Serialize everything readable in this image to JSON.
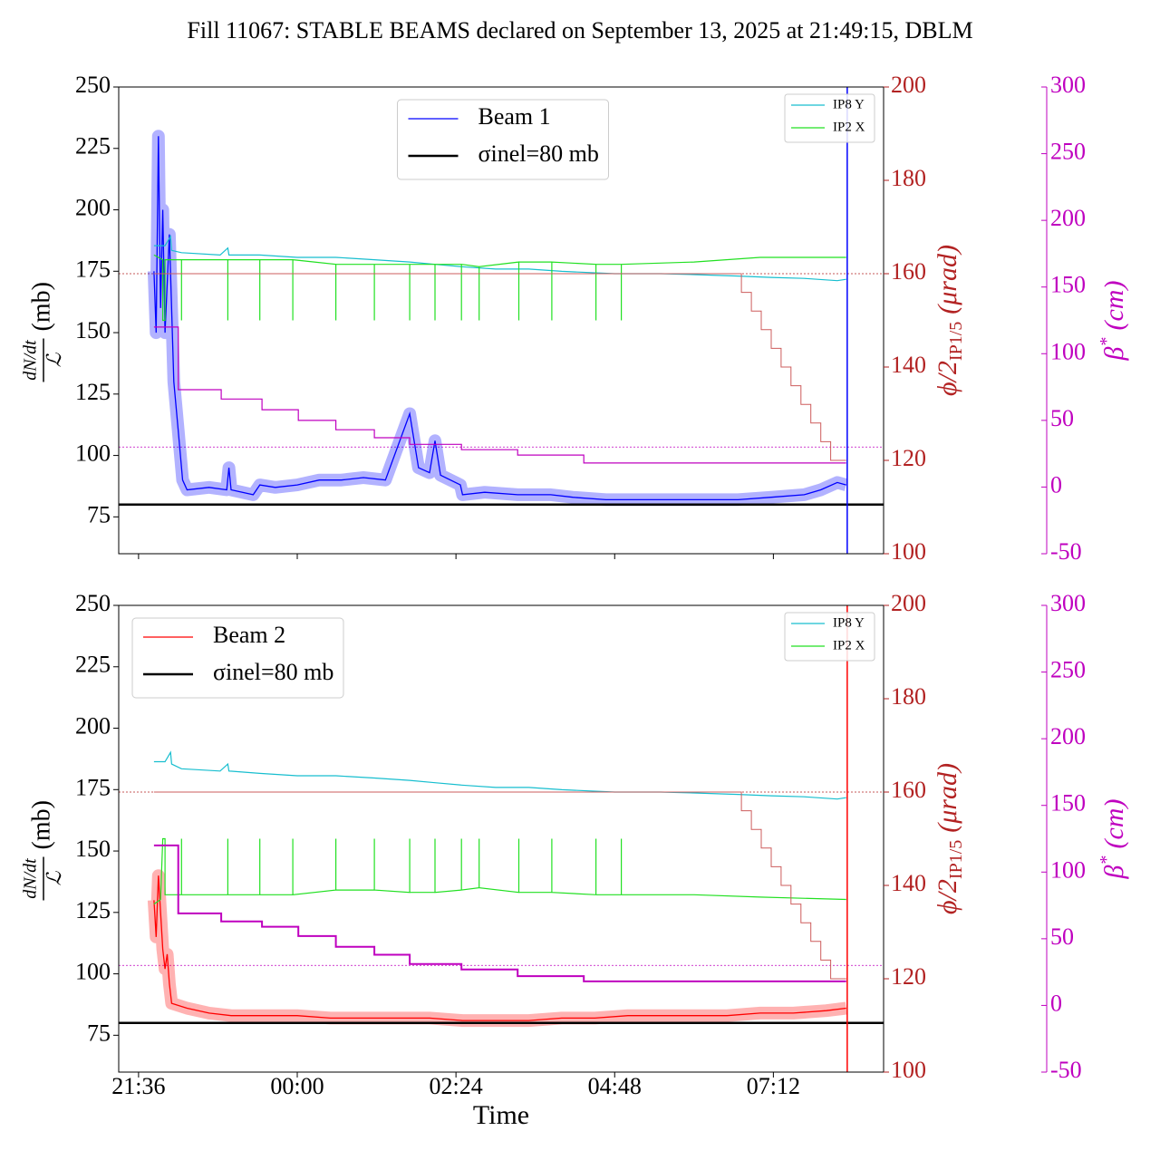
{
  "title": "Fill 11067: STABLE BEAMS declared on September 13, 2025 at 21:49:15, DBLM",
  "chart_data": [
    {
      "type": "line",
      "ylabel": {
        "numerator": "dN/dt",
        "denominator": "ℒ",
        "unit": "(mb)"
      },
      "y2label": {
        "text": "ϕ/2",
        "sub": "IP1/5",
        "unit": "(μrad)"
      },
      "y3label": {
        "text": "β",
        "sup": "*",
        "unit": "(cm)"
      },
      "xlim": [
        "21:18",
        "08:52"
      ],
      "ylim": [
        60,
        250
      ],
      "yticks": [
        75,
        100,
        125,
        150,
        175,
        200,
        225,
        250
      ],
      "y2lim": [
        100,
        200
      ],
      "y2ticks": [
        100,
        120,
        140,
        160,
        180,
        200
      ],
      "y3lim": [
        -50,
        300
      ],
      "y3ticks": [
        -50,
        0,
        50,
        100,
        150,
        200,
        250,
        300
      ],
      "legend": "upper center",
      "vline": {
        "x": "08:19",
        "color": "#0000ff"
      },
      "hlines": [
        {
          "axis": "y2",
          "value": 160,
          "color": "#b22222"
        },
        {
          "axis": "y3",
          "value": 30,
          "color": "#bf00bf"
        }
      ],
      "series": [
        {
          "name": "Beam 1",
          "color": "#0000ff",
          "axis": "y",
          "linewidth": 1.3,
          "spread": true,
          "x": [
            "21:50",
            "21:52",
            "21:54",
            "21:56",
            "21:58",
            "22:00",
            "22:04",
            "22:08",
            "22:12",
            "22:16",
            "22:20",
            "22:40",
            "22:56",
            "22:58",
            "23:00",
            "23:20",
            "23:26",
            "23:40",
            "00:00",
            "00:20",
            "00:40",
            "01:00",
            "01:20",
            "01:42",
            "01:50",
            "02:00",
            "02:05",
            "02:10",
            "02:28",
            "02:30",
            "02:50",
            "03:20",
            "03:50",
            "04:10",
            "04:40",
            "05:10",
            "05:40",
            "06:10",
            "06:40",
            "07:10",
            "07:40",
            "07:55",
            "08:10",
            "08:18"
          ],
          "values": [
            175,
            150,
            230,
            160,
            200,
            150,
            190,
            130,
            110,
            90,
            86,
            87,
            86,
            95,
            86,
            84,
            88,
            87,
            88,
            90,
            90,
            91,
            90,
            117,
            95,
            93,
            106,
            92,
            88,
            84,
            85,
            84,
            84,
            83,
            82,
            82,
            82,
            82,
            82,
            83,
            84,
            86,
            89,
            88
          ]
        },
        {
          "name": "σinel=80 mb",
          "color": "#000000",
          "axis": "y",
          "linewidth": 2.5,
          "x": [
            "21:18",
            "08:52"
          ],
          "values": [
            80,
            80
          ]
        },
        {
          "name": "IP8 Y",
          "color": "#17becf",
          "axis": "y2",
          "linewidth": 1.2,
          "x": [
            "21:50",
            "22:00",
            "22:05",
            "22:06",
            "22:15",
            "22:50",
            "22:57",
            "22:58",
            "23:26",
            "00:00",
            "00:35",
            "01:10",
            "01:42",
            "02:05",
            "02:29",
            "03:00",
            "03:30",
            "04:00",
            "04:48",
            "05:30",
            "06:00",
            "06:40",
            "07:10",
            "07:40",
            "08:10",
            "08:18"
          ],
          "values": [
            166,
            166,
            168,
            165,
            164.5,
            164,
            165.5,
            164,
            164,
            163.5,
            163.5,
            163,
            162.5,
            162,
            161.5,
            161,
            161,
            160.5,
            160,
            160,
            159.8,
            159.5,
            159.2,
            159,
            158.5,
            158.8
          ]
        },
        {
          "name": "IP2 X",
          "color": "#22e022",
          "axis": "y2",
          "linewidth": 1.2,
          "x": [
            "21:50",
            "21:58",
            "21:58",
            "22:00",
            "22:00",
            "22:15",
            "22:15",
            "22:15",
            "22:57",
            "22:57",
            "22:57",
            "23:26",
            "23:26",
            "23:26",
            "23:56",
            "23:56",
            "23:56",
            "00:35",
            "00:35",
            "00:35",
            "01:10",
            "01:10",
            "01:10",
            "01:42",
            "01:42",
            "01:42",
            "02:05",
            "02:05",
            "02:05",
            "02:29",
            "02:29",
            "02:29",
            "02:45",
            "02:45",
            "02:45",
            "03:21",
            "03:21",
            "03:21",
            "03:51",
            "03:51",
            "03:51",
            "04:31",
            "04:31",
            "04:31",
            "04:54",
            "04:54",
            "04:54",
            "06:00",
            "07:00",
            "08:18"
          ],
          "values": [
            164,
            163,
            150,
            150,
            163,
            163,
            150,
            163,
            163,
            150,
            163,
            163,
            150,
            163,
            163,
            150,
            163,
            162,
            150,
            162,
            162,
            150,
            162,
            162,
            150,
            162,
            162,
            150,
            162,
            162,
            150,
            162,
            161.5,
            150,
            161.5,
            162.5,
            150,
            162.5,
            162.5,
            150,
            162.5,
            162,
            150,
            162,
            162,
            150,
            162,
            162.5,
            163.5,
            163.5
          ]
        },
        {
          "color": "#cd5c5c",
          "axis": "y2",
          "linewidth": 1,
          "x": [
            "21:50",
            "06:43",
            "06:43",
            "06:52",
            "06:52",
            "07:01",
            "07:01",
            "07:10",
            "07:10",
            "07:19",
            "07:19",
            "07:28",
            "07:28",
            "07:37",
            "07:37",
            "07:46",
            "07:46",
            "07:55",
            "07:55",
            "08:04",
            "08:04",
            "08:18"
          ],
          "values": [
            160,
            160,
            156,
            156,
            152,
            152,
            148,
            148,
            144,
            144,
            140,
            140,
            136,
            136,
            132,
            132,
            128,
            128,
            124,
            124,
            120,
            120
          ]
        },
        {
          "color": "#bf00bf",
          "axis": "y3",
          "linewidth": 1.2,
          "x": [
            "21:50",
            "22:12",
            "22:12",
            "22:51",
            "22:51",
            "23:28",
            "23:28",
            "00:01",
            "00:01",
            "00:35",
            "00:35",
            "01:10",
            "01:10",
            "01:42",
            "01:42",
            "02:29",
            "02:29",
            "03:20",
            "03:20",
            "04:20",
            "04:20",
            "08:18"
          ],
          "values": [
            120,
            120,
            73,
            73,
            66,
            66,
            58,
            58,
            50,
            50,
            43,
            43,
            37,
            37,
            32,
            32,
            28,
            28,
            24,
            24,
            18,
            18
          ]
        }
      ]
    },
    {
      "type": "line",
      "ylabel": {
        "numerator": "dN/dt",
        "denominator": "ℒ",
        "unit": "(mb)"
      },
      "y2label": {
        "text": "ϕ/2",
        "sub": "IP1/5",
        "unit": "(μrad)"
      },
      "y3label": {
        "text": "β",
        "sup": "*",
        "unit": "(cm)"
      },
      "xlabel": "Time",
      "xlim": [
        "21:18",
        "08:52"
      ],
      "xticks": [
        "21:36",
        "00:00",
        "02:24",
        "04:48",
        "07:12"
      ],
      "ylim": [
        60,
        250
      ],
      "yticks": [
        75,
        100,
        125,
        150,
        175,
        200,
        225,
        250
      ],
      "y2lim": [
        100,
        200
      ],
      "y2ticks": [
        100,
        120,
        140,
        160,
        180,
        200
      ],
      "y3lim": [
        -50,
        300
      ],
      "y3ticks": [
        -50,
        0,
        50,
        100,
        150,
        200,
        250,
        300
      ],
      "legend": "upper left",
      "vline": {
        "x": "08:19",
        "color": "#ff0000"
      },
      "hlines": [
        {
          "axis": "y2",
          "value": 160,
          "color": "#b22222"
        },
        {
          "axis": "y3",
          "value": 30,
          "color": "#bf00bf"
        }
      ],
      "series": [
        {
          "name": "Beam 2",
          "color": "#ff0000",
          "axis": "y",
          "linewidth": 1.3,
          "spread": true,
          "x": [
            "21:50",
            "21:52",
            "21:54",
            "21:56",
            "21:58",
            "22:00",
            "22:02",
            "22:04",
            "22:06",
            "22:20",
            "22:40",
            "23:00",
            "23:30",
            "00:00",
            "00:30",
            "01:00",
            "01:30",
            "02:00",
            "02:30",
            "03:00",
            "03:30",
            "04:00",
            "04:30",
            "05:00",
            "05:30",
            "06:00",
            "06:30",
            "07:00",
            "07:30",
            "08:00",
            "08:18"
          ],
          "values": [
            130,
            115,
            140,
            125,
            110,
            102,
            108,
            96,
            88,
            86,
            84,
            83,
            83,
            83,
            82,
            82,
            82,
            82,
            81,
            81,
            81,
            82,
            82,
            83,
            83,
            83,
            83,
            84,
            84,
            85,
            86
          ]
        },
        {
          "name": "σinel=80 mb",
          "color": "#000000",
          "axis": "y",
          "linewidth": 2.5,
          "x": [
            "21:18",
            "08:52"
          ],
          "values": [
            80,
            80
          ]
        },
        {
          "name": "IP8 Y",
          "color": "#17becf",
          "axis": "y2",
          "linewidth": 1.2,
          "x": [
            "21:50",
            "22:00",
            "22:05",
            "22:06",
            "22:15",
            "22:50",
            "22:57",
            "22:58",
            "23:26",
            "00:00",
            "00:35",
            "01:10",
            "01:42",
            "02:05",
            "02:29",
            "03:00",
            "03:30",
            "04:00",
            "04:48",
            "05:30",
            "06:00",
            "06:40",
            "07:10",
            "07:40",
            "08:10",
            "08:18"
          ],
          "values": [
            166.5,
            166.5,
            168.5,
            166,
            165,
            164.5,
            166,
            164.5,
            164,
            163.5,
            163.5,
            163,
            162.5,
            162,
            161.5,
            161,
            161,
            160.5,
            160,
            160,
            159.8,
            159.5,
            159.2,
            159,
            158.5,
            158.8
          ]
        },
        {
          "name": "IP2 X",
          "color": "#22e022",
          "axis": "y2",
          "linewidth": 1.2,
          "x": [
            "21:50",
            "21:56",
            "21:58",
            "22:00",
            "22:00",
            "22:15",
            "22:15",
            "22:15",
            "22:57",
            "22:57",
            "22:57",
            "23:26",
            "23:26",
            "23:26",
            "23:56",
            "23:56",
            "23:56",
            "00:35",
            "00:35",
            "00:35",
            "01:10",
            "01:10",
            "01:10",
            "01:42",
            "01:42",
            "01:42",
            "02:05",
            "02:05",
            "02:05",
            "02:29",
            "02:29",
            "02:29",
            "02:45",
            "02:45",
            "02:45",
            "03:21",
            "03:21",
            "03:21",
            "03:51",
            "03:51",
            "03:51",
            "04:31",
            "04:31",
            "04:31",
            "04:54",
            "04:54",
            "04:54",
            "06:00",
            "07:00",
            "08:18"
          ],
          "values": [
            136,
            137,
            150,
            150,
            138,
            138,
            150,
            138,
            138,
            150,
            138,
            138,
            150,
            138,
            138,
            150,
            138,
            139,
            150,
            139,
            139,
            150,
            139,
            138.5,
            150,
            138.5,
            138.5,
            150,
            138.5,
            139,
            150,
            139,
            139.5,
            150,
            139.5,
            138.5,
            150,
            138.5,
            138.5,
            150,
            138.5,
            138,
            150,
            138,
            138,
            150,
            138,
            138,
            137.5,
            137
          ]
        },
        {
          "color": "#cd5c5c",
          "axis": "y2",
          "linewidth": 1,
          "x": [
            "21:50",
            "06:43",
            "06:43",
            "06:52",
            "06:52",
            "07:01",
            "07:01",
            "07:10",
            "07:10",
            "07:19",
            "07:19",
            "07:28",
            "07:28",
            "07:37",
            "07:37",
            "07:46",
            "07:46",
            "07:55",
            "07:55",
            "08:04",
            "08:04",
            "08:18"
          ],
          "values": [
            160,
            160,
            156,
            156,
            152,
            152,
            148,
            148,
            144,
            144,
            140,
            140,
            136,
            136,
            132,
            132,
            128,
            128,
            124,
            124,
            120,
            120
          ]
        },
        {
          "color": "#bf00bf",
          "axis": "y3",
          "linewidth": 2,
          "x": [
            "21:50",
            "22:12",
            "22:12",
            "22:51",
            "22:51",
            "23:28",
            "23:28",
            "00:01",
            "00:01",
            "00:35",
            "00:35",
            "01:10",
            "01:10",
            "01:42",
            "01:42",
            "02:29",
            "02:29",
            "03:20",
            "03:20",
            "04:20",
            "04:20",
            "08:18"
          ],
          "values": [
            120,
            120,
            69,
            69,
            63,
            63,
            59,
            59,
            52,
            52,
            44,
            44,
            38,
            38,
            31,
            31,
            27,
            27,
            22,
            22,
            18,
            18
          ]
        }
      ]
    }
  ]
}
